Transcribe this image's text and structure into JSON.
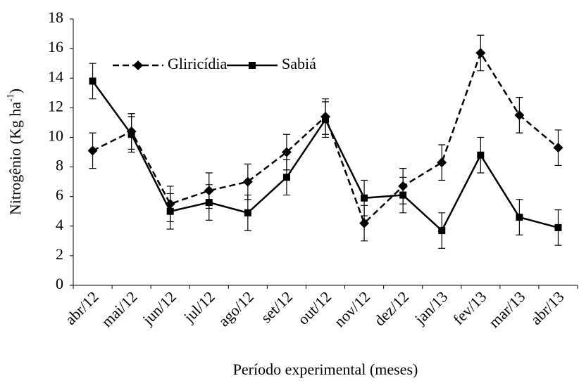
{
  "chart_data": {
    "type": "line",
    "y_label": {
      "text": "Nitrogênio (Kg ha",
      "superscript": "-1",
      "suffix": ")"
    },
    "x_label": "Período experimental (meses)",
    "categories": [
      "abr/12",
      "mai/12",
      "jun/12",
      "jul/12",
      "ago/12",
      "set/12",
      "out/12",
      "nov/12",
      "dez/12",
      "jan/13",
      "fev/13",
      "mar/13",
      "abr/13"
    ],
    "series": [
      {
        "name": "Gliricídia",
        "color": "#000000",
        "dash": true,
        "marker": "diamond",
        "values": [
          9.1,
          10.4,
          5.5,
          6.4,
          7.0,
          9.0,
          11.4,
          4.2,
          6.7,
          8.3,
          15.7,
          11.5,
          9.3
        ],
        "errors": [
          1.2,
          1.2,
          1.2,
          1.2,
          1.2,
          1.2,
          1.2,
          1.2,
          1.2,
          1.2,
          1.2,
          1.2,
          1.2
        ]
      },
      {
        "name": "Sabiá",
        "color": "#000000",
        "dash": false,
        "marker": "square",
        "values": [
          13.8,
          10.2,
          5.0,
          5.6,
          4.9,
          7.3,
          11.2,
          5.9,
          6.1,
          3.7,
          8.8,
          4.6,
          3.9
        ],
        "errors": [
          1.2,
          1.2,
          1.2,
          1.2,
          1.2,
          1.2,
          1.2,
          1.2,
          1.2,
          1.2,
          1.2,
          1.2,
          1.2
        ]
      }
    ],
    "ylim": [
      0,
      18
    ],
    "yticks": [
      0,
      2,
      4,
      6,
      8,
      10,
      12,
      14,
      16,
      18
    ],
    "grid": false
  }
}
